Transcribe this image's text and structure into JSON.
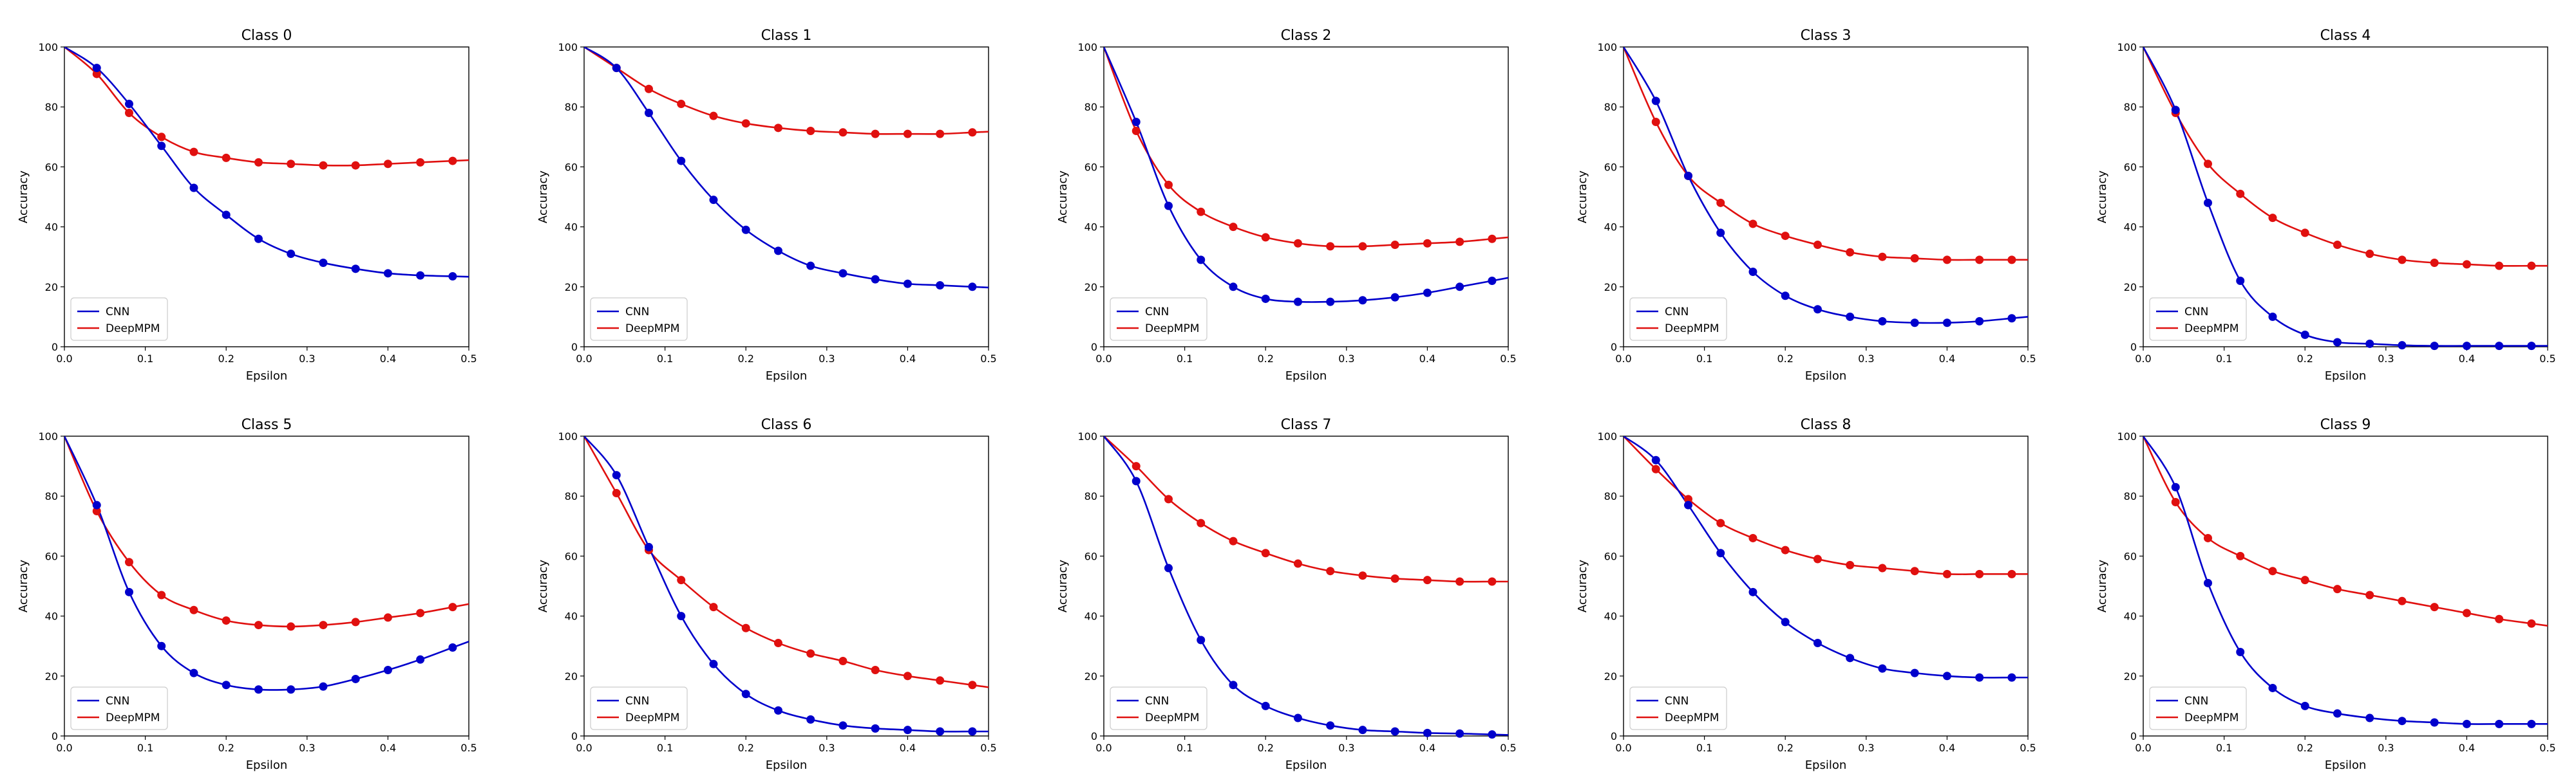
{
  "chart_data": [
    {
      "type": "line",
      "title": "Class 0",
      "xlabel": "Epsilon",
      "ylabel": "Accuracy",
      "xlim": [
        0,
        0.5
      ],
      "ylim": [
        0,
        100
      ],
      "x": [
        0,
        0.04,
        0.08,
        0.12,
        0.16,
        0.2,
        0.24,
        0.28,
        0.32,
        0.36,
        0.4,
        0.44,
        0.48
      ],
      "series": [
        {
          "name": "CNN",
          "color": "#0000cc",
          "values": [
            100,
            93,
            81,
            67,
            53,
            44,
            36,
            31,
            28,
            26,
            24.5,
            23.8,
            23.5
          ]
        },
        {
          "name": "DeepMPM",
          "color": "#e0100f",
          "values": [
            100,
            91,
            78,
            70,
            65,
            63,
            61.5,
            61,
            60.5,
            60.5,
            61,
            61.5,
            62
          ]
        }
      ]
    },
    {
      "type": "line",
      "title": "Class 1",
      "xlabel": "Epsilon",
      "ylabel": "Accuracy",
      "xlim": [
        0,
        0.5
      ],
      "ylim": [
        0,
        100
      ],
      "x": [
        0,
        0.04,
        0.08,
        0.12,
        0.16,
        0.2,
        0.24,
        0.28,
        0.32,
        0.36,
        0.4,
        0.44,
        0.48
      ],
      "series": [
        {
          "name": "CNN",
          "color": "#0000cc",
          "values": [
            100,
            93,
            78,
            62,
            49,
            39,
            32,
            27,
            24.5,
            22.5,
            21,
            20.5,
            20
          ]
        },
        {
          "name": "DeepMPM",
          "color": "#e0100f",
          "values": [
            100,
            93,
            86,
            81,
            77,
            74.5,
            73,
            72,
            71.5,
            71,
            71,
            71,
            71.5
          ]
        }
      ]
    },
    {
      "type": "line",
      "title": "Class 2",
      "xlabel": "Epsilon",
      "ylabel": "Accuracy",
      "xlim": [
        0,
        0.5
      ],
      "ylim": [
        0,
        100
      ],
      "x": [
        0,
        0.04,
        0.08,
        0.12,
        0.16,
        0.2,
        0.24,
        0.28,
        0.32,
        0.36,
        0.4,
        0.44,
        0.48
      ],
      "series": [
        {
          "name": "CNN",
          "color": "#0000cc",
          "values": [
            100,
            75,
            47,
            29,
            20,
            16,
            15,
            15,
            15.5,
            16.5,
            18,
            20,
            22
          ]
        },
        {
          "name": "DeepMPM",
          "color": "#e0100f",
          "values": [
            100,
            72,
            54,
            45,
            40,
            36.5,
            34.5,
            33.5,
            33.5,
            34,
            34.5,
            35,
            36
          ]
        }
      ]
    },
    {
      "type": "line",
      "title": "Class 3",
      "xlabel": "Epsilon",
      "ylabel": "Accuracy",
      "xlim": [
        0,
        0.5
      ],
      "ylim": [
        0,
        100
      ],
      "x": [
        0,
        0.04,
        0.08,
        0.12,
        0.16,
        0.2,
        0.24,
        0.28,
        0.32,
        0.36,
        0.4,
        0.44,
        0.48
      ],
      "series": [
        {
          "name": "CNN",
          "color": "#0000cc",
          "values": [
            100,
            82,
            57,
            38,
            25,
            17,
            12.5,
            10,
            8.5,
            8,
            8,
            8.5,
            9.5
          ]
        },
        {
          "name": "DeepMPM",
          "color": "#e0100f",
          "values": [
            100,
            75,
            57,
            48,
            41,
            37,
            34,
            31.5,
            30,
            29.5,
            29,
            29,
            29
          ]
        }
      ]
    },
    {
      "type": "line",
      "title": "Class 4",
      "xlabel": "Epsilon",
      "ylabel": "Accuracy",
      "xlim": [
        0,
        0.5
      ],
      "ylim": [
        0,
        100
      ],
      "x": [
        0,
        0.04,
        0.08,
        0.12,
        0.16,
        0.2,
        0.24,
        0.28,
        0.32,
        0.36,
        0.4,
        0.44,
        0.48
      ],
      "series": [
        {
          "name": "CNN",
          "color": "#0000cc",
          "values": [
            100,
            79,
            48,
            22,
            10,
            4,
            1.5,
            1,
            0.5,
            0.3,
            0.3,
            0.3,
            0.3
          ]
        },
        {
          "name": "DeepMPM",
          "color": "#e0100f",
          "values": [
            100,
            78,
            61,
            51,
            43,
            38,
            34,
            31,
            29,
            28,
            27.5,
            27,
            27
          ]
        }
      ]
    },
    {
      "type": "line",
      "title": "Class 5",
      "xlabel": "Epsilon",
      "ylabel": "Accuracy",
      "xlim": [
        0,
        0.5
      ],
      "ylim": [
        0,
        100
      ],
      "x": [
        0,
        0.04,
        0.08,
        0.12,
        0.16,
        0.2,
        0.24,
        0.28,
        0.32,
        0.36,
        0.4,
        0.44,
        0.48
      ],
      "series": [
        {
          "name": "CNN",
          "color": "#0000cc",
          "values": [
            100,
            77,
            48,
            30,
            21,
            17,
            15.5,
            15.5,
            16.5,
            19,
            22,
            25.5,
            29.5
          ]
        },
        {
          "name": "DeepMPM",
          "color": "#e0100f",
          "values": [
            100,
            75,
            58,
            47,
            42,
            38.5,
            37,
            36.5,
            37,
            38,
            39.5,
            41,
            43
          ]
        }
      ]
    },
    {
      "type": "line",
      "title": "Class 6",
      "xlabel": "Epsilon",
      "ylabel": "Accuracy",
      "xlim": [
        0,
        0.5
      ],
      "ylim": [
        0,
        100
      ],
      "x": [
        0,
        0.04,
        0.08,
        0.12,
        0.16,
        0.2,
        0.24,
        0.28,
        0.32,
        0.36,
        0.4,
        0.44,
        0.48
      ],
      "series": [
        {
          "name": "CNN",
          "color": "#0000cc",
          "values": [
            100,
            87,
            63,
            40,
            24,
            14,
            8.5,
            5.5,
            3.5,
            2.5,
            2,
            1.5,
            1.5
          ]
        },
        {
          "name": "DeepMPM",
          "color": "#e0100f",
          "values": [
            100,
            81,
            62,
            52,
            43,
            36,
            31,
            27.5,
            25,
            22,
            20,
            18.5,
            17
          ]
        }
      ]
    },
    {
      "type": "line",
      "title": "Class 7",
      "xlabel": "Epsilon",
      "ylabel": "Accuracy",
      "xlim": [
        0,
        0.5
      ],
      "ylim": [
        0,
        100
      ],
      "x": [
        0,
        0.04,
        0.08,
        0.12,
        0.16,
        0.2,
        0.24,
        0.28,
        0.32,
        0.36,
        0.4,
        0.44,
        0.48
      ],
      "series": [
        {
          "name": "CNN",
          "color": "#0000cc",
          "values": [
            100,
            85,
            56,
            32,
            17,
            10,
            6,
            3.5,
            2,
            1.5,
            1,
            0.8,
            0.5
          ]
        },
        {
          "name": "DeepMPM",
          "color": "#e0100f",
          "values": [
            100,
            90,
            79,
            71,
            65,
            61,
            57.5,
            55,
            53.5,
            52.5,
            52,
            51.5,
            51.5
          ]
        }
      ]
    },
    {
      "type": "line",
      "title": "Class 8",
      "xlabel": "Epsilon",
      "ylabel": "Accuracy",
      "xlim": [
        0,
        0.5
      ],
      "ylim": [
        0,
        100
      ],
      "x": [
        0,
        0.04,
        0.08,
        0.12,
        0.16,
        0.2,
        0.24,
        0.28,
        0.32,
        0.36,
        0.4,
        0.44,
        0.48
      ],
      "series": [
        {
          "name": "CNN",
          "color": "#0000cc",
          "values": [
            100,
            92,
            77,
            61,
            48,
            38,
            31,
            26,
            22.5,
            21,
            20,
            19.5,
            19.5
          ]
        },
        {
          "name": "DeepMPM",
          "color": "#e0100f",
          "values": [
            100,
            89,
            79,
            71,
            66,
            62,
            59,
            57,
            56,
            55,
            54,
            54,
            54
          ]
        }
      ]
    },
    {
      "type": "line",
      "title": "Class 9",
      "xlabel": "Epsilon",
      "ylabel": "Accuracy",
      "xlim": [
        0,
        0.5
      ],
      "ylim": [
        0,
        100
      ],
      "x": [
        0,
        0.04,
        0.08,
        0.12,
        0.16,
        0.2,
        0.24,
        0.28,
        0.32,
        0.36,
        0.4,
        0.44,
        0.48
      ],
      "series": [
        {
          "name": "CNN",
          "color": "#0000cc",
          "values": [
            100,
            83,
            51,
            28,
            16,
            10,
            7.5,
            6,
            5,
            4.5,
            4,
            4,
            4
          ]
        },
        {
          "name": "DeepMPM",
          "color": "#e0100f",
          "values": [
            100,
            78,
            66,
            60,
            55,
            52,
            49,
            47,
            45,
            43,
            41,
            39,
            37.5
          ]
        }
      ]
    }
  ]
}
